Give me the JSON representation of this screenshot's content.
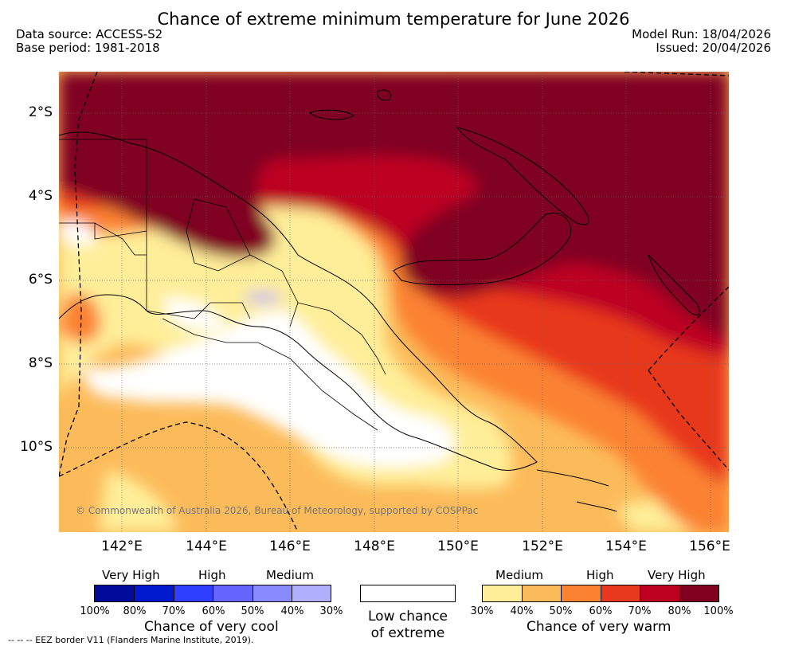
{
  "title": "Chance of extreme minimum temperature for June 2026",
  "data_source": "Data source: ACCESS-S2",
  "base_period": "Base period: 1981-2018",
  "model_run": "Model Run: 18/04/2026",
  "issued": "Issued: 20/04/2026",
  "lat_labels": [
    "2°S",
    "4°S",
    "6°S",
    "8°S",
    "10°S"
  ],
  "lon_labels": [
    "142°E",
    "144°E",
    "146°E",
    "148°E",
    "150°E",
    "152°E",
    "154°E",
    "156°E"
  ],
  "copyright": "© Commonwealth of Australia 2026, Bureau of Meteorology, supported by COSPPac",
  "legend": {
    "cool": {
      "title": "Chance of very cool",
      "categories": [
        "Very High",
        "High",
        "Medium"
      ],
      "ticks": [
        "100%",
        "80%",
        "70%",
        "60%",
        "50%",
        "40%",
        "30%"
      ],
      "colors": [
        "#000c99",
        "#0019cc",
        "#2e3fff",
        "#6666ff",
        "#8a8aff",
        "#b0b0ff"
      ]
    },
    "low": {
      "line1": "Low chance",
      "line2": "of extreme",
      "color": "#ffffff"
    },
    "warm": {
      "title": "Chance of very warm",
      "categories": [
        "Medium",
        "High",
        "Very High"
      ],
      "ticks": [
        "30%",
        "40%",
        "50%",
        "60%",
        "70%",
        "80%",
        "100%"
      ],
      "colors": [
        "#ffee99",
        "#fcbb5a",
        "#fb8231",
        "#e8391e",
        "#bd0020",
        "#800020"
      ]
    }
  },
  "eez_note": "--  --  -- EEZ border V11 (Flanders Marine Institute, 2019)."
}
